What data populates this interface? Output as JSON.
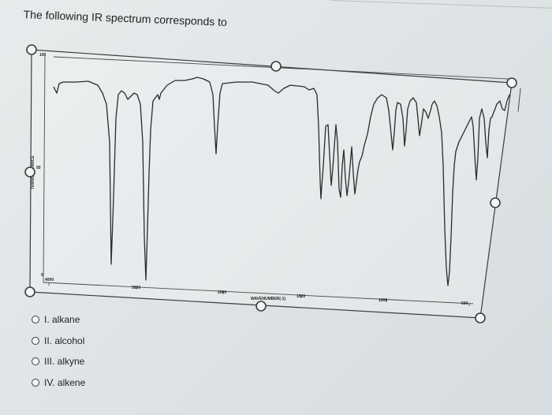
{
  "question": {
    "text": "The following IR spectrum corresponds to"
  },
  "spectrum": {
    "y_top_label": "100",
    "y_mid_label": "50",
    "y_bottom_label": "0",
    "y_axis_title": "TRANSMITTANCE",
    "x_tick_labels": [
      "4000",
      "3000",
      "2000",
      "1500",
      "1000",
      "500"
    ],
    "x_axis_title": "WAVENUMBER(-1)",
    "line_color": "#2b2b2b"
  },
  "options": [
    {
      "label": "I.  alkane"
    },
    {
      "label": "II.  alcohol"
    },
    {
      "label": "III. alkyne"
    },
    {
      "label": "IV. alkene"
    }
  ]
}
